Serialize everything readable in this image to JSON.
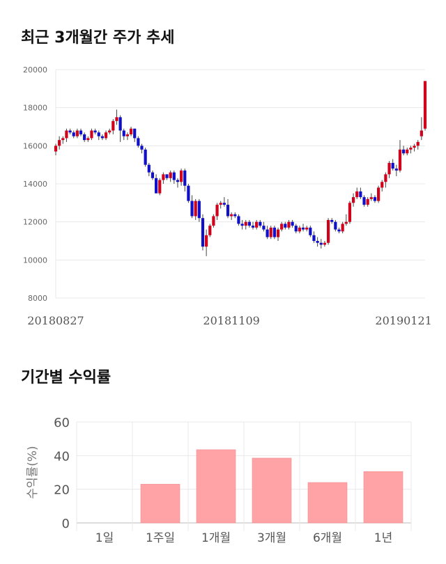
{
  "sections": {
    "price_title": "최근 3개월간 주가 추세",
    "returns_title": "기간별 수익률"
  },
  "colors": {
    "up": "#d0021b",
    "down": "#1010c8",
    "bar": "#ffa3a6",
    "grid": "#e8e8e8"
  },
  "chart_data": [
    {
      "type": "candlestick",
      "title": "최근 3개월간 주가 추세",
      "ylim": [
        8000,
        20000
      ],
      "yticks": [
        8000,
        10000,
        12000,
        14000,
        16000,
        18000,
        20000
      ],
      "x_tick_labels": [
        {
          "index": 0,
          "label": "20180827"
        },
        {
          "index": 49,
          "label": "20181109"
        },
        {
          "index": 97,
          "label": "20190121"
        }
      ],
      "ohlc": [
        [
          15700,
          16100,
          15500,
          16000
        ],
        [
          16000,
          16500,
          15800,
          16300
        ],
        [
          16300,
          16500,
          16100,
          16400
        ],
        [
          16400,
          16900,
          16200,
          16800
        ],
        [
          16800,
          16900,
          16600,
          16700
        ],
        [
          16700,
          16800,
          16400,
          16500
        ],
        [
          16500,
          16900,
          16400,
          16800
        ],
        [
          16800,
          16900,
          16500,
          16600
        ],
        [
          16600,
          16700,
          16200,
          16300
        ],
        [
          16300,
          16500,
          16200,
          16400
        ],
        [
          16400,
          16900,
          16300,
          16800
        ],
        [
          16800,
          16900,
          16600,
          16700
        ],
        [
          16700,
          16800,
          16300,
          16500
        ],
        [
          16500,
          16600,
          16300,
          16400
        ],
        [
          16400,
          16800,
          16300,
          16700
        ],
        [
          16700,
          16900,
          16600,
          16800
        ],
        [
          16800,
          17400,
          16600,
          17300
        ],
        [
          17300,
          17900,
          17100,
          17500
        ],
        [
          17500,
          17600,
          16200,
          16800
        ],
        [
          16800,
          16900,
          16300,
          16500
        ],
        [
          16500,
          16700,
          16300,
          16600
        ],
        [
          16600,
          17000,
          16500,
          16900
        ],
        [
          16900,
          16900,
          16200,
          16400
        ],
        [
          16400,
          16500,
          15900,
          16000
        ],
        [
          16000,
          16100,
          15600,
          15800
        ],
        [
          15800,
          15900,
          14900,
          15000
        ],
        [
          15000,
          15100,
          14400,
          14600
        ],
        [
          14600,
          14700,
          14200,
          14300
        ],
        [
          14300,
          14500,
          13600,
          13500
        ],
        [
          13500,
          14300,
          13400,
          14200
        ],
        [
          14200,
          14600,
          14000,
          14500
        ],
        [
          14500,
          14500,
          14200,
          14300
        ],
        [
          14300,
          14700,
          14100,
          14600
        ],
        [
          14600,
          14700,
          14000,
          14200
        ],
        [
          14200,
          14300,
          13800,
          14100
        ],
        [
          14100,
          14800,
          13900,
          14700
        ],
        [
          14700,
          14800,
          13600,
          13900
        ],
        [
          13900,
          14000,
          13000,
          13100
        ],
        [
          13100,
          13400,
          12200,
          12300
        ],
        [
          12300,
          13200,
          12100,
          13100
        ],
        [
          13100,
          13200,
          12000,
          12200
        ],
        [
          12200,
          12400,
          10500,
          10700
        ],
        [
          10700,
          11600,
          10200,
          11300
        ],
        [
          11300,
          11900,
          11200,
          11800
        ],
        [
          11800,
          12400,
          11700,
          12300
        ],
        [
          12300,
          13000,
          12100,
          12900
        ],
        [
          12900,
          13100,
          12700,
          13000
        ],
        [
          13000,
          13300,
          12800,
          12900
        ],
        [
          12900,
          13200,
          12200,
          12300
        ],
        [
          12300,
          12500,
          12100,
          12400
        ],
        [
          12400,
          12500,
          12200,
          12300
        ],
        [
          12300,
          12400,
          11800,
          11900
        ],
        [
          11900,
          12100,
          11600,
          11800
        ],
        [
          11800,
          12100,
          11600,
          12000
        ],
        [
          12000,
          12100,
          11700,
          11800
        ],
        [
          11800,
          12000,
          11600,
          11700
        ],
        [
          11700,
          12100,
          11600,
          12000
        ],
        [
          12000,
          12100,
          11700,
          11800
        ],
        [
          11800,
          12000,
          11500,
          11600
        ],
        [
          11600,
          11800,
          11100,
          11200
        ],
        [
          11200,
          11800,
          11100,
          11700
        ],
        [
          11700,
          11800,
          11100,
          11200
        ],
        [
          11200,
          11700,
          11000,
          11600
        ],
        [
          11600,
          12000,
          11500,
          11900
        ],
        [
          11900,
          12000,
          11600,
          11700
        ],
        [
          11700,
          12100,
          11600,
          12000
        ],
        [
          12000,
          12100,
          11700,
          11800
        ],
        [
          11800,
          11900,
          11400,
          11500
        ],
        [
          11500,
          11800,
          11400,
          11700
        ],
        [
          11700,
          11900,
          11500,
          11600
        ],
        [
          11600,
          11800,
          11500,
          11700
        ],
        [
          11700,
          11800,
          11200,
          11300
        ],
        [
          11300,
          11500,
          10900,
          11000
        ],
        [
          11000,
          11200,
          10700,
          10900
        ],
        [
          10900,
          11100,
          10600,
          10800
        ],
        [
          10800,
          11000,
          10700,
          10900
        ],
        [
          10900,
          12200,
          10800,
          12100
        ],
        [
          12100,
          12200,
          11900,
          12000
        ],
        [
          12000,
          12100,
          11500,
          11600
        ],
        [
          11600,
          11700,
          11400,
          11500
        ],
        [
          11500,
          12000,
          11400,
          11900
        ],
        [
          11900,
          12400,
          11800,
          12000
        ],
        [
          12000,
          13100,
          11900,
          13000
        ],
        [
          13000,
          13500,
          12800,
          13300
        ],
        [
          13300,
          13800,
          13200,
          13600
        ],
        [
          13600,
          13800,
          13200,
          13300
        ],
        [
          13300,
          13400,
          12800,
          12900
        ],
        [
          12900,
          13300,
          12800,
          13200
        ],
        [
          13200,
          13500,
          13100,
          13300
        ],
        [
          13300,
          13400,
          13000,
          13100
        ],
        [
          13100,
          13900,
          13000,
          13800
        ],
        [
          13800,
          14200,
          13600,
          14100
        ],
        [
          14100,
          14600,
          13800,
          14500
        ],
        [
          14500,
          15200,
          14300,
          15100
        ],
        [
          15100,
          15300,
          14700,
          14800
        ],
        [
          14800,
          15000,
          14400,
          14700
        ],
        [
          14700,
          16300,
          14600,
          15800
        ],
        [
          15800,
          16000,
          15500,
          15600
        ],
        [
          15600,
          15900,
          15500,
          15800
        ],
        [
          15800,
          16000,
          15600,
          15900
        ],
        [
          15900,
          16100,
          15700,
          16000
        ],
        [
          16000,
          16300,
          15800,
          16200
        ],
        [
          16500,
          17500,
          16300,
          16800
        ],
        [
          16900,
          19400,
          16800,
          19400
        ]
      ]
    },
    {
      "type": "bar",
      "title": "기간별 수익률",
      "categories": [
        "1일",
        "1주일",
        "1개월",
        "3개월",
        "6개월",
        "1년"
      ],
      "values": [
        0,
        23,
        43.5,
        38.5,
        24,
        30.5
      ],
      "ylabel": "수익률(%)",
      "ylim": [
        0,
        60
      ],
      "yticks": [
        0,
        20,
        40,
        60
      ]
    }
  ]
}
